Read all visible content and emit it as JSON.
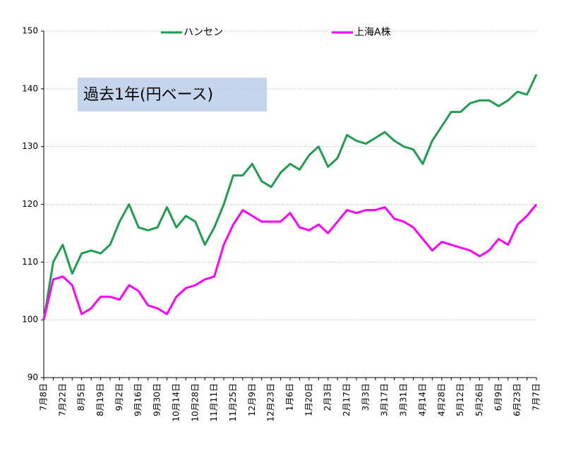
{
  "chart_data": {
    "type": "line",
    "annotation": "過去1年(円ベース)",
    "categories": [
      "7月8日",
      null,
      "7月22日",
      null,
      "8月5日",
      null,
      "8月19日",
      null,
      "9月2日",
      null,
      "9月16日",
      null,
      "9月30日",
      null,
      "10月14日",
      null,
      "10月28日",
      null,
      "11月11日",
      null,
      "11月25日",
      null,
      "12月9日",
      null,
      "12月23日",
      null,
      "1月6日",
      null,
      "1月20日",
      null,
      "2月3日",
      null,
      "2月17日",
      null,
      "3月3日",
      null,
      "3月17日",
      null,
      "3月31日",
      null,
      "4月14日",
      null,
      "4月28日",
      null,
      "5月12日",
      null,
      "5月26日",
      null,
      "6月9日",
      null,
      "6月23日",
      null,
      "7月7日"
    ],
    "series": [
      {
        "name": "ハンセン",
        "color": "#1e9e4e",
        "values": [
          100,
          110,
          113,
          108,
          111.5,
          112,
          111.5,
          113,
          117,
          120,
          116,
          115.5,
          116,
          119.5,
          116,
          118,
          117,
          113,
          116,
          120,
          125,
          125,
          127,
          124,
          123,
          125.5,
          127,
          126,
          128.5,
          130,
          126.5,
          128,
          132,
          131,
          130.5,
          131.5,
          132.5,
          131,
          130,
          129.5,
          127,
          131,
          133.5,
          136,
          136,
          137.5,
          138,
          138,
          137,
          138,
          139.5,
          139,
          142.5
        ]
      },
      {
        "name": "上海A株",
        "color": "#ff00ff",
        "values": [
          100,
          107,
          107.5,
          106,
          101,
          102,
          104,
          104,
          103.5,
          106,
          105,
          102.5,
          102,
          101,
          104,
          105.5,
          106,
          107,
          107.5,
          113,
          116.5,
          119,
          118,
          117,
          117,
          117,
          118.5,
          116,
          115.5,
          116.5,
          115,
          117,
          119,
          118.5,
          119,
          119,
          119.5,
          117.5,
          117,
          116,
          114,
          112,
          113.5,
          113,
          112.5,
          112,
          111,
          112,
          114,
          113,
          116.5,
          118,
          120
        ]
      }
    ],
    "ylim": [
      90,
      150
    ],
    "yticks": [
      90,
      100,
      110,
      120,
      130,
      140,
      150
    ],
    "grid": true
  }
}
